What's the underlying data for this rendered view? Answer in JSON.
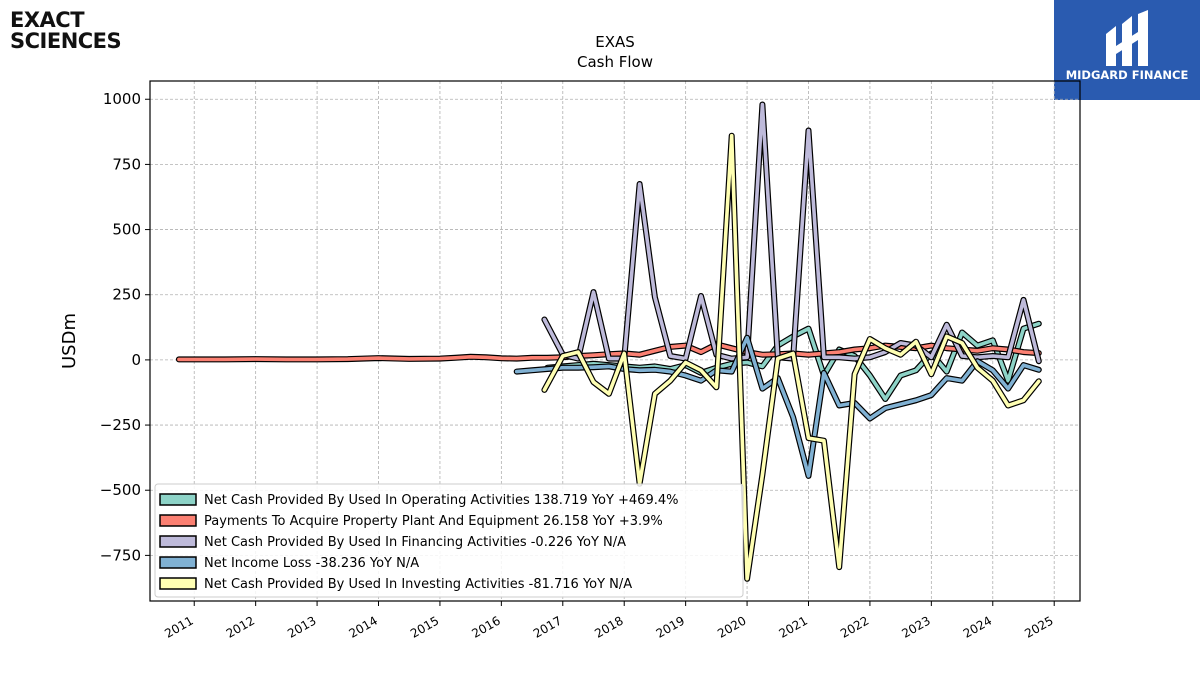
{
  "header": {
    "company_logo_line1": "EXACT",
    "company_logo_line2": "SCIENCES",
    "brand_name": "MIDGARD FINANCE"
  },
  "chart_data": {
    "type": "line",
    "title": "EXAS",
    "subtitle": "Cash Flow",
    "xlabel": "",
    "ylabel": "USDm",
    "xlim": [
      2010.28,
      2025.42
    ],
    "ylim": [
      -925,
      1070
    ],
    "x_ticks": [
      2011,
      2012,
      2013,
      2014,
      2015,
      2016,
      2017,
      2018,
      2019,
      2020,
      2021,
      2022,
      2023,
      2024,
      2025
    ],
    "y_ticks": [
      -750,
      -500,
      -250,
      0,
      250,
      500,
      750,
      1000
    ],
    "grid": true,
    "legend_position": "lower-left",
    "series": [
      {
        "name": "Net Cash Provided By Used In Operating Activities",
        "legend_label": "Net Cash Provided By Used In Operating Activities  138.719 YoY +469.4%",
        "color": "#8dd3c7",
        "points": [
          [
            2016.75,
            -30
          ],
          [
            2017.0,
            -25
          ],
          [
            2017.25,
            -20
          ],
          [
            2017.5,
            -15
          ],
          [
            2017.75,
            -20
          ],
          [
            2018.0,
            -25
          ],
          [
            2018.25,
            -30
          ],
          [
            2018.5,
            -25
          ],
          [
            2018.75,
            -35
          ],
          [
            2019.0,
            -20
          ],
          [
            2019.25,
            -50
          ],
          [
            2019.5,
            -30
          ],
          [
            2019.75,
            -15
          ],
          [
            2020.0,
            -10
          ],
          [
            2020.25,
            -25
          ],
          [
            2020.5,
            55
          ],
          [
            2020.75,
            90
          ],
          [
            2021.0,
            120
          ],
          [
            2021.25,
            -60
          ],
          [
            2021.5,
            40
          ],
          [
            2021.75,
            15
          ],
          [
            2022.0,
            -60
          ],
          [
            2022.25,
            -150
          ],
          [
            2022.5,
            -60
          ],
          [
            2022.75,
            -40
          ],
          [
            2023.0,
            25
          ],
          [
            2023.25,
            -45
          ],
          [
            2023.5,
            105
          ],
          [
            2023.75,
            55
          ],
          [
            2024.0,
            75
          ],
          [
            2024.25,
            -80
          ],
          [
            2024.5,
            120
          ],
          [
            2024.75,
            139
          ]
        ]
      },
      {
        "name": "Payments To Acquire Property Plant And Equipment",
        "legend_label": "Payments To Acquire Property Plant And Equipment  26.158 YoY +3.9%",
        "color": "#fb8072",
        "points": [
          [
            2010.75,
            2
          ],
          [
            2011.0,
            2
          ],
          [
            2011.5,
            2
          ],
          [
            2012.0,
            3
          ],
          [
            2012.5,
            2
          ],
          [
            2013.0,
            2
          ],
          [
            2013.5,
            3
          ],
          [
            2014.0,
            7
          ],
          [
            2014.5,
            4
          ],
          [
            2015.0,
            5
          ],
          [
            2015.25,
            8
          ],
          [
            2015.5,
            12
          ],
          [
            2015.75,
            10
          ],
          [
            2016.0,
            6
          ],
          [
            2016.25,
            5
          ],
          [
            2016.5,
            8
          ],
          [
            2016.75,
            8
          ],
          [
            2017.0,
            10
          ],
          [
            2017.25,
            15
          ],
          [
            2017.5,
            18
          ],
          [
            2017.75,
            22
          ],
          [
            2018.0,
            25
          ],
          [
            2018.25,
            20
          ],
          [
            2018.5,
            35
          ],
          [
            2018.75,
            50
          ],
          [
            2019.0,
            55
          ],
          [
            2019.25,
            30
          ],
          [
            2019.5,
            60
          ],
          [
            2019.75,
            45
          ],
          [
            2020.0,
            30
          ],
          [
            2020.25,
            20
          ],
          [
            2020.5,
            22
          ],
          [
            2020.75,
            25
          ],
          [
            2021.0,
            20
          ],
          [
            2021.25,
            25
          ],
          [
            2021.5,
            30
          ],
          [
            2021.75,
            40
          ],
          [
            2022.0,
            45
          ],
          [
            2022.25,
            55
          ],
          [
            2022.5,
            50
          ],
          [
            2022.75,
            45
          ],
          [
            2023.0,
            55
          ],
          [
            2023.25,
            45
          ],
          [
            2023.5,
            40
          ],
          [
            2023.75,
            35
          ],
          [
            2024.0,
            45
          ],
          [
            2024.25,
            40
          ],
          [
            2024.5,
            30
          ],
          [
            2024.75,
            26
          ]
        ]
      },
      {
        "name": "Net Cash Provided By Used In Financing Activities",
        "legend_label": "Net Cash Provided By Used In Financing Activities  -0.226 YoY N/A",
        "color": "#bebada",
        "points": [
          [
            2016.7,
            155
          ],
          [
            2017.0,
            20
          ],
          [
            2017.25,
            5
          ],
          [
            2017.5,
            260
          ],
          [
            2017.75,
            5
          ],
          [
            2018.0,
            5
          ],
          [
            2018.25,
            675
          ],
          [
            2018.5,
            240
          ],
          [
            2018.75,
            15
          ],
          [
            2019.0,
            5
          ],
          [
            2019.25,
            245
          ],
          [
            2019.5,
            20
          ],
          [
            2019.75,
            5
          ],
          [
            2020.0,
            10
          ],
          [
            2020.25,
            980
          ],
          [
            2020.5,
            10
          ],
          [
            2020.75,
            5
          ],
          [
            2021.0,
            880
          ],
          [
            2021.25,
            10
          ],
          [
            2021.5,
            10
          ],
          [
            2021.75,
            5
          ],
          [
            2022.0,
            10
          ],
          [
            2022.25,
            30
          ],
          [
            2022.5,
            65
          ],
          [
            2022.75,
            55
          ],
          [
            2023.0,
            10
          ],
          [
            2023.25,
            135
          ],
          [
            2023.5,
            15
          ],
          [
            2023.75,
            10
          ],
          [
            2024.0,
            15
          ],
          [
            2024.25,
            10
          ],
          [
            2024.5,
            230
          ],
          [
            2024.75,
            -5
          ]
        ]
      },
      {
        "name": "Net Income Loss",
        "legend_label": "Net Income Loss  -38.236 YoY N/A",
        "color": "#80b1d3",
        "points": [
          [
            2016.25,
            -45
          ],
          [
            2016.5,
            -40
          ],
          [
            2016.75,
            -35
          ],
          [
            2017.0,
            -30
          ],
          [
            2017.25,
            -30
          ],
          [
            2017.5,
            -28
          ],
          [
            2017.75,
            -25
          ],
          [
            2018.0,
            -35
          ],
          [
            2018.25,
            -40
          ],
          [
            2018.5,
            -38
          ],
          [
            2018.75,
            -45
          ],
          [
            2019.0,
            -60
          ],
          [
            2019.25,
            -80
          ],
          [
            2019.5,
            -40
          ],
          [
            2019.75,
            -45
          ],
          [
            2020.0,
            85
          ],
          [
            2020.25,
            -110
          ],
          [
            2020.5,
            -70
          ],
          [
            2020.75,
            -220
          ],
          [
            2021.0,
            -445
          ],
          [
            2021.25,
            -50
          ],
          [
            2021.5,
            -175
          ],
          [
            2021.75,
            -165
          ],
          [
            2022.0,
            -225
          ],
          [
            2022.25,
            -185
          ],
          [
            2022.5,
            -170
          ],
          [
            2022.75,
            -155
          ],
          [
            2023.0,
            -135
          ],
          [
            2023.25,
            -70
          ],
          [
            2023.5,
            -80
          ],
          [
            2023.75,
            -5
          ],
          [
            2024.0,
            -40
          ],
          [
            2024.25,
            -110
          ],
          [
            2024.5,
            -20
          ],
          [
            2024.75,
            -38
          ]
        ]
      },
      {
        "name": "Net Cash Provided By Used In Investing Activities",
        "legend_label": "Net Cash Provided By Used In Investing Activities  -81.716 YoY N/A",
        "color": "#ffffb3",
        "points": [
          [
            2016.7,
            -115
          ],
          [
            2017.0,
            15
          ],
          [
            2017.25,
            30
          ],
          [
            2017.5,
            -85
          ],
          [
            2017.75,
            -130
          ],
          [
            2018.0,
            25
          ],
          [
            2018.25,
            -475
          ],
          [
            2018.5,
            -130
          ],
          [
            2018.75,
            -80
          ],
          [
            2019.0,
            -10
          ],
          [
            2019.25,
            -40
          ],
          [
            2019.5,
            -105
          ],
          [
            2019.75,
            860
          ],
          [
            2020.0,
            -840
          ],
          [
            2020.25,
            -440
          ],
          [
            2020.5,
            5
          ],
          [
            2020.75,
            25
          ],
          [
            2021.0,
            -300
          ],
          [
            2021.25,
            -310
          ],
          [
            2021.5,
            -795
          ],
          [
            2021.75,
            -55
          ],
          [
            2022.0,
            80
          ],
          [
            2022.25,
            45
          ],
          [
            2022.5,
            20
          ],
          [
            2022.75,
            70
          ],
          [
            2023.0,
            -55
          ],
          [
            2023.25,
            90
          ],
          [
            2023.5,
            65
          ],
          [
            2023.75,
            -30
          ],
          [
            2024.0,
            -80
          ],
          [
            2024.25,
            -175
          ],
          [
            2024.5,
            -155
          ],
          [
            2024.75,
            -82
          ]
        ]
      }
    ]
  }
}
